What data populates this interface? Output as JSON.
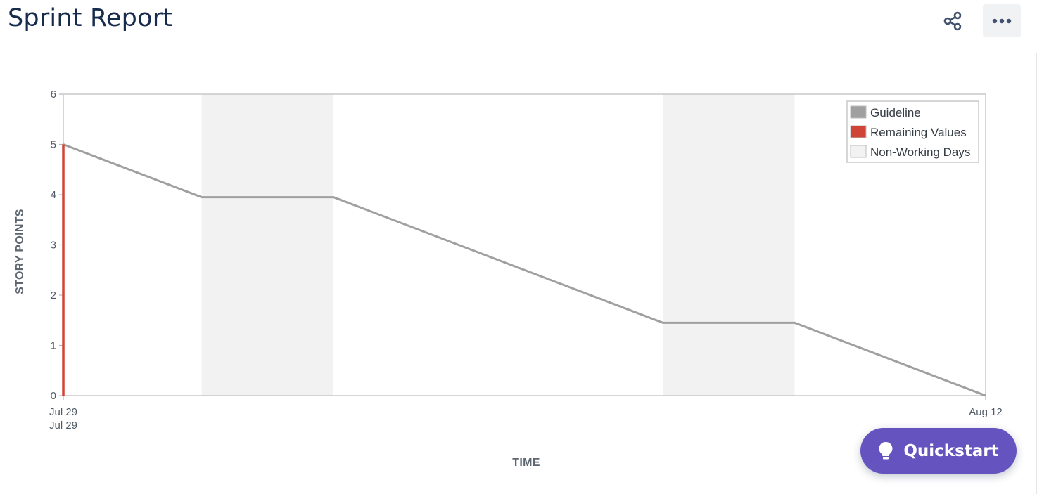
{
  "header": {
    "title": "Sprint Report",
    "share_icon": "share-icon",
    "more_icon": "more-horizontal-icon"
  },
  "chart_data": {
    "type": "line",
    "x_ticks": [
      {
        "label": "Jul 29",
        "sublabel": "Jul 29",
        "x": 0
      },
      {
        "label": "Aug 12",
        "sublabel": "",
        "x": 14
      }
    ],
    "xlabel": "TIME",
    "ylabel": "STORY POINTS",
    "xlim": [
      0,
      14
    ],
    "ylim": [
      0,
      6
    ],
    "y_ticks": [
      0,
      1,
      2,
      3,
      4,
      5,
      6
    ],
    "grid": false,
    "legend_position": "top-right",
    "non_working_days": [
      [
        2.1,
        4.1
      ],
      [
        9.1,
        11.1
      ]
    ],
    "series": [
      {
        "name": "Guideline",
        "color": "#a0a0a0",
        "x": [
          0,
          2.1,
          4.1,
          9.1,
          11.1,
          14
        ],
        "y": [
          5,
          3.95,
          3.95,
          1.45,
          1.45,
          0
        ]
      },
      {
        "name": "Remaining Values",
        "color": "#d04437",
        "x": [
          0,
          0
        ],
        "y": [
          0,
          5
        ]
      }
    ],
    "legend": [
      {
        "name": "Guideline",
        "color": "#a0a0a0"
      },
      {
        "name": "Remaining Values",
        "color": "#d04437"
      },
      {
        "name": "Non-Working Days",
        "color": "#f2f2f2"
      }
    ]
  },
  "quickstart": {
    "label": "Quickstart",
    "icon": "lightbulb-icon",
    "color": "#6554c0"
  }
}
